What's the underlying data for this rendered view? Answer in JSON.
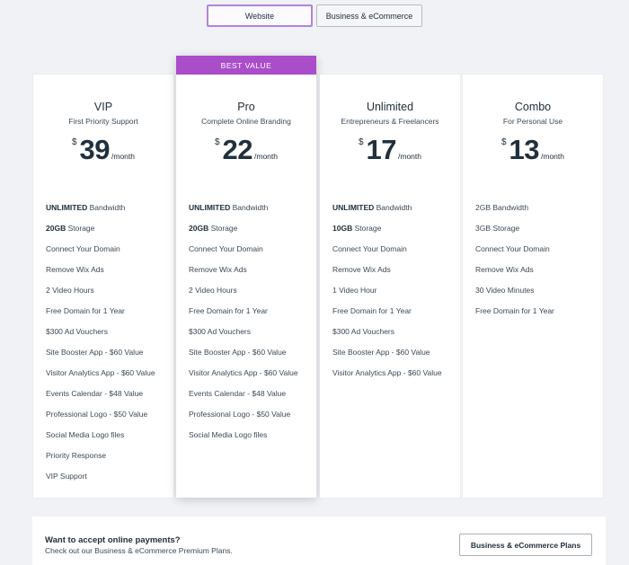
{
  "tabs": {
    "website": "Website",
    "business": "Business & eCommerce"
  },
  "plans": [
    {
      "name": "VIP",
      "subtitle": "First Priority Support",
      "currency": "$",
      "price": "39",
      "period": "/month",
      "features": [
        {
          "bold": "UNLIMITED",
          "text": " Bandwidth"
        },
        {
          "bold": "20GB",
          "text": " Storage"
        },
        {
          "bold": "",
          "text": "Connect Your Domain"
        },
        {
          "bold": "",
          "text": "Remove Wix Ads"
        },
        {
          "bold": "",
          "text": "2 Video Hours"
        },
        {
          "bold": "",
          "text": "Free Domain for 1 Year"
        },
        {
          "bold": "",
          "text": "$300 Ad Vouchers"
        },
        {
          "bold": "",
          "text": "Site Booster App - $60 Value"
        },
        {
          "bold": "",
          "text": "Visitor Analytics App - $60 Value"
        },
        {
          "bold": "",
          "text": "Events Calendar - $48 Value"
        },
        {
          "bold": "",
          "text": "Professional Logo - $50 Value"
        },
        {
          "bold": "",
          "text": "Social Media Logo files"
        },
        {
          "bold": "",
          "text": "Priority Response"
        },
        {
          "bold": "",
          "text": "VIP Support"
        }
      ]
    },
    {
      "name": "Pro",
      "subtitle": "Complete Online Branding",
      "ribbon": "BEST VALUE",
      "currency": "$",
      "price": "22",
      "period": "/month",
      "features": [
        {
          "bold": "UNLIMITED",
          "text": " Bandwidth"
        },
        {
          "bold": "20GB",
          "text": " Storage"
        },
        {
          "bold": "",
          "text": "Connect Your Domain"
        },
        {
          "bold": "",
          "text": "Remove Wix Ads"
        },
        {
          "bold": "",
          "text": "2 Video Hours"
        },
        {
          "bold": "",
          "text": "Free Domain for 1 Year"
        },
        {
          "bold": "",
          "text": "$300 Ad Vouchers"
        },
        {
          "bold": "",
          "text": "Site Booster App - $60 Value"
        },
        {
          "bold": "",
          "text": "Visitor Analytics App - $60 Value"
        },
        {
          "bold": "",
          "text": "Events Calendar - $48 Value"
        },
        {
          "bold": "",
          "text": "Professional Logo - $50 Value"
        },
        {
          "bold": "",
          "text": "Social Media Logo files"
        }
      ]
    },
    {
      "name": "Unlimited",
      "subtitle": "Entrepreneurs & Freelancers",
      "currency": "$",
      "price": "17",
      "period": "/month",
      "features": [
        {
          "bold": "UNLIMITED",
          "text": " Bandwidth"
        },
        {
          "bold": "10GB",
          "text": " Storage"
        },
        {
          "bold": "",
          "text": "Connect Your Domain"
        },
        {
          "bold": "",
          "text": "Remove Wix Ads"
        },
        {
          "bold": "",
          "text": "1 Video Hour"
        },
        {
          "bold": "",
          "text": "Free Domain for 1 Year"
        },
        {
          "bold": "",
          "text": "$300 Ad Vouchers"
        },
        {
          "bold": "",
          "text": "Site Booster App - $60 Value"
        },
        {
          "bold": "",
          "text": "Visitor Analytics App - $60 Value"
        }
      ]
    },
    {
      "name": "Combo",
      "subtitle": "For Personal Use",
      "currency": "$",
      "price": "13",
      "period": "/month",
      "features": [
        {
          "bold": "",
          "text": "2GB Bandwidth"
        },
        {
          "bold": "",
          "text": "3GB Storage"
        },
        {
          "bold": "",
          "text": "Connect Your Domain"
        },
        {
          "bold": "",
          "text": "Remove Wix Ads"
        },
        {
          "bold": "",
          "text": "30 Video Minutes"
        },
        {
          "bold": "",
          "text": "Free Domain for 1 Year"
        }
      ]
    }
  ],
  "footer": {
    "title": "Want to accept online payments?",
    "subtitle": "Check out our Business & eCommerce Premium Plans.",
    "button": "Business & eCommerce Plans"
  }
}
